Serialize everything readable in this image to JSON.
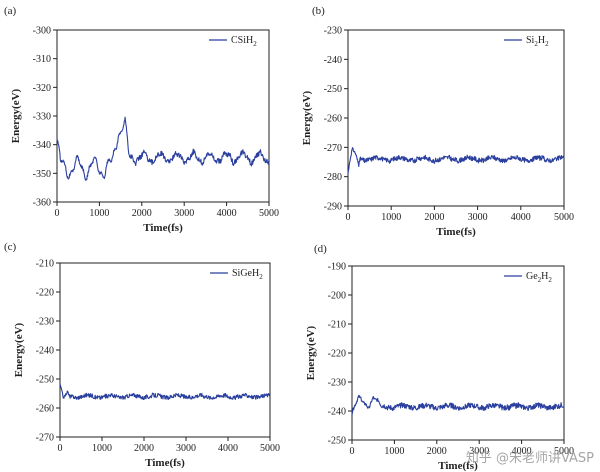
{
  "line_color": "#2a3f9e",
  "watermark": "知乎 @宋老师讲VASP",
  "chart_data": [
    {
      "type": "line",
      "panel_label": "(a)",
      "series": [
        {
          "name": "CSiH₂",
          "label_main": "CSiH",
          "label_sub": "2"
        }
      ],
      "xlabel": "Time(fs)",
      "ylabel": "Energy(eV)",
      "xlim": [
        0,
        5000
      ],
      "ylim": [
        -360,
        -300
      ],
      "xticks": [
        0,
        1000,
        2000,
        3000,
        4000,
        5000
      ],
      "yticks": [
        -360,
        -350,
        -340,
        -330,
        -320,
        -310,
        -300
      ],
      "baseline": -344.5,
      "osc_amplitude": 3.5,
      "noise_amplitude": 0.9,
      "features": [
        {
          "x": 0,
          "y": -338
        },
        {
          "x": 80,
          "y": -348
        },
        {
          "x": 1300,
          "y": -348
        },
        {
          "x": 1450,
          "y": -334
        },
        {
          "x": 1600,
          "y": -333
        },
        {
          "x": 1700,
          "y": -346
        }
      ]
    },
    {
      "type": "line",
      "panel_label": "(b)",
      "series": [
        {
          "name": "Si₂H₂",
          "label_main": "Si",
          "label_sub": "2",
          "label_tail": "H",
          "label_sub2": "2"
        }
      ],
      "xlabel": "Time(fs)",
      "ylabel": "Energy(eV)",
      "xlim": [
        0,
        5000
      ],
      "ylim": [
        -290,
        -230
      ],
      "xticks": [
        0,
        1000,
        2000,
        3000,
        4000,
        5000
      ],
      "yticks": [
        -290,
        -280,
        -270,
        -260,
        -250,
        -240,
        -230
      ],
      "baseline": -274,
      "osc_amplitude": 1.2,
      "noise_amplitude": 0.8,
      "features": [
        {
          "x": 0,
          "y": -279
        },
        {
          "x": 100,
          "y": -271
        },
        {
          "x": 250,
          "y": -276
        }
      ]
    },
    {
      "type": "line",
      "panel_label": "(c)",
      "series": [
        {
          "name": "SiGeH₂",
          "label_main": "SiGeH",
          "label_sub": "2"
        }
      ],
      "xlabel": "Time(fs)",
      "ylabel": "Energy(eV)",
      "xlim": [
        0,
        5000
      ],
      "ylim": [
        -270,
        -210
      ],
      "xticks": [
        0,
        1000,
        2000,
        3000,
        4000,
        5000
      ],
      "yticks": [
        -270,
        -260,
        -250,
        -240,
        -230,
        -220,
        -210
      ],
      "baseline": -256,
      "osc_amplitude": 0.9,
      "noise_amplitude": 0.7,
      "features": [
        {
          "x": 0,
          "y": -252
        },
        {
          "x": 80,
          "y": -257
        },
        {
          "x": 200,
          "y": -255
        }
      ]
    },
    {
      "type": "line",
      "panel_label": "(d)",
      "series": [
        {
          "name": "Ge₂H₂",
          "label_main": "Ge",
          "label_sub": "2",
          "label_tail": "H",
          "label_sub2": "2"
        }
      ],
      "xlabel": "Time(fs)",
      "ylabel": "Energy(eV)",
      "xlim": [
        0,
        5000
      ],
      "ylim": [
        -250,
        -190
      ],
      "xticks": [
        0,
        1000,
        2000,
        3000,
        4000,
        5000
      ],
      "yticks": [
        -250,
        -240,
        -230,
        -220,
        -210,
        -200,
        -190
      ],
      "baseline": -238.5,
      "osc_amplitude": 1.0,
      "noise_amplitude": 0.9,
      "features": [
        {
          "x": 0,
          "y": -241
        },
        {
          "x": 150,
          "y": -236
        },
        {
          "x": 400,
          "y": -238
        },
        {
          "x": 500,
          "y": -235
        },
        {
          "x": 700,
          "y": -239
        }
      ]
    }
  ]
}
